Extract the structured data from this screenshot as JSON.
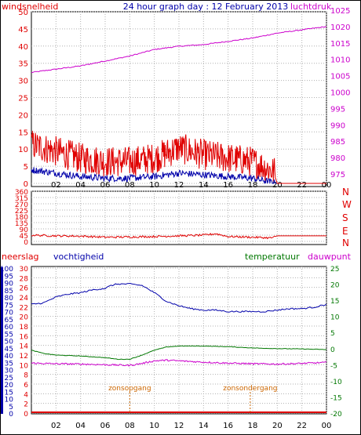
{
  "title": "24 hour graph day : 12 February 2013",
  "colors": {
    "red": "#e00000",
    "magenta": "#cc00cc",
    "blue": "#0000aa",
    "green": "#007700",
    "orange": "#cc6600",
    "axis": "#000000",
    "grid": "#b0b0b0"
  },
  "chart_data": [
    {
      "type": "line",
      "title": "24 hour graph day : 12 February 2013",
      "left_axis": {
        "label": "windsnelheid",
        "ylim": [
          0,
          50
        ],
        "ticks": [
          "0",
          "5",
          "10",
          "15",
          "20",
          "25",
          "30",
          "35",
          "40",
          "45",
          "50"
        ]
      },
      "right_axis": {
        "label": "luchtdruk",
        "ylim": [
          975,
          1025
        ],
        "ticks": [
          "975",
          "980",
          "985",
          "990",
          "995",
          "1000",
          "1005",
          "1010",
          "1015",
          "1020",
          "1025"
        ]
      },
      "x_ticks": [
        "02",
        "04",
        "06",
        "08",
        "10",
        "12",
        "14",
        "16",
        "18",
        "20",
        "22",
        "00"
      ],
      "series": [
        {
          "name": "luchtdruk",
          "axis": "right",
          "x": [
            0,
            2,
            4,
            6,
            8,
            10,
            12,
            14,
            16,
            18,
            20,
            22,
            24
          ],
          "values": [
            1006,
            1007,
            1008,
            1009.5,
            1011,
            1013,
            1014,
            1014.5,
            1015.5,
            1016.5,
            1018,
            1019,
            1020
          ]
        },
        {
          "name": "windsnelheid",
          "axis": "left",
          "x": [
            0,
            2,
            4,
            6,
            8,
            10,
            12,
            14,
            16,
            18,
            19.8,
            20,
            22,
            24
          ],
          "values": [
            10,
            8,
            6,
            5,
            5,
            6,
            9,
            7,
            6,
            5,
            2,
            0,
            0,
            0
          ]
        },
        {
          "axis": "left",
          "x": [
            0,
            2,
            4,
            6,
            8,
            10,
            12,
            14,
            16,
            18,
            20,
            24
          ],
          "values": [
            4,
            3,
            2,
            1.5,
            1.5,
            2,
            3,
            2.5,
            2,
            1.5,
            0,
            0
          ]
        }
      ]
    },
    {
      "type": "line",
      "y_ticks": [
        "0",
        "45",
        "90",
        "135",
        "180",
        "225",
        "270",
        "315",
        "360"
      ],
      "ylim": [
        0,
        360
      ],
      "right_labels": [
        "N",
        "W",
        "S",
        "E",
        "N"
      ],
      "series": [
        {
          "x": [
            0,
            2,
            4,
            6,
            8,
            10,
            12,
            14,
            15,
            16,
            18,
            19.5,
            20,
            24
          ],
          "values": [
            45,
            40,
            38,
            30,
            32,
            35,
            40,
            45,
            55,
            35,
            30,
            25,
            40,
            40
          ]
        }
      ]
    },
    {
      "type": "line",
      "axes": {
        "neerslag": {
          "label": "neerslag",
          "ticks": [
            "0",
            "5",
            "10",
            "15",
            "20",
            "25",
            "30",
            "35",
            "40",
            "45",
            "50",
            "55",
            "60",
            "65",
            "70",
            "75",
            "80",
            "85",
            "90",
            "95",
            "100"
          ]
        },
        "vochtigheid": {
          "label": "vochtigheid",
          "ylim": [
            0,
            100
          ],
          "ticks": [
            "0",
            "2",
            "4",
            "6",
            "8",
            "10",
            "12",
            "14",
            "16",
            "18",
            "20",
            "22",
            "24",
            "26",
            "28",
            "30"
          ]
        },
        "temperatuur": {
          "label": "temperatuur",
          "ylim": [
            -20,
            25
          ],
          "ticks": [
            "-20",
            "-15",
            "-10",
            "-5",
            "0",
            "5",
            "10",
            "15",
            "20",
            "25"
          ]
        },
        "dauwpunt": {
          "label": "dauwpunt"
        }
      },
      "annotations": [
        {
          "label": "zonsopgang",
          "x": 8.0
        },
        {
          "label": "zonsondergang",
          "x": 17.8
        }
      ],
      "x_ticks": [
        "02",
        "04",
        "06",
        "08",
        "10",
        "12",
        "14",
        "16",
        "18",
        "20",
        "22",
        "00"
      ],
      "series": [
        {
          "axis": "vochtigheid",
          "x": [
            0,
            1,
            2,
            3,
            4,
            5,
            6,
            6.5,
            7,
            8,
            9,
            10,
            11,
            12,
            13,
            14,
            15,
            16,
            17,
            18,
            19,
            20,
            21,
            22,
            23,
            24
          ],
          "values": [
            75,
            76,
            80,
            82,
            83,
            85,
            86,
            88,
            89,
            89,
            88,
            83,
            77,
            74,
            72,
            71,
            71,
            70,
            70,
            70,
            70,
            71,
            72,
            72,
            73,
            75
          ]
        },
        {
          "axis": "temperatuur",
          "x": [
            0,
            1,
            2,
            4,
            6,
            7,
            8,
            9,
            10,
            11,
            12,
            14,
            16,
            18,
            20,
            22,
            24
          ],
          "values": [
            -0.5,
            -1.5,
            -2.0,
            -2.3,
            -2.8,
            -3.3,
            -3.3,
            -2.0,
            -0.5,
            0.5,
            0.8,
            0.8,
            0.6,
            0.2,
            0.0,
            -0.1,
            -0.3
          ]
        },
        {
          "axis": "temperatuur",
          "x": [
            0,
            2,
            4,
            6,
            7,
            8,
            9,
            10,
            11,
            12,
            14,
            16,
            18,
            20,
            22,
            24
          ],
          "values": [
            -4.5,
            -4.7,
            -4.8,
            -5.0,
            -5.1,
            -5.2,
            -4.6,
            -3.8,
            -3.6,
            -3.8,
            -4.2,
            -4.5,
            -4.7,
            -4.8,
            -4.6,
            -4.3
          ]
        },
        {
          "axis": "neerslag",
          "x": [
            0,
            24
          ],
          "values": [
            0,
            0
          ]
        }
      ]
    }
  ]
}
